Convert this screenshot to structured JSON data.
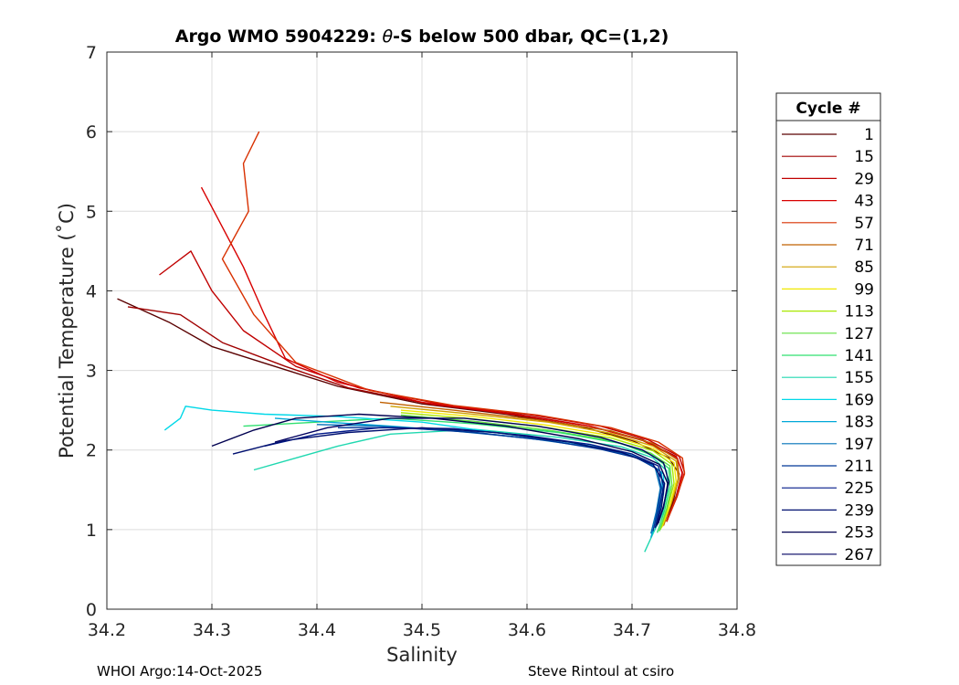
{
  "chart_data": {
    "type": "line",
    "title": "Argo WMO 5904229: θ-S below 500 dbar,  QC=(1,2)",
    "title_prefix": "Argo WMO 5904229: ",
    "title_theta": "θ",
    "title_suffix": "-S below 500 dbar,  QC=(1,2)",
    "xlabel": "Salinity",
    "ylabel": "Potential Temperature (˚C)",
    "xlim": [
      34.2,
      34.8
    ],
    "ylim": [
      0,
      7
    ],
    "xticks": [
      "34.2",
      "34.3",
      "34.4",
      "34.5",
      "34.6",
      "34.7",
      "34.8"
    ],
    "yticks": [
      "0",
      "1",
      "2",
      "3",
      "4",
      "5",
      "6",
      "7"
    ],
    "grid": true,
    "legend": {
      "title": "Cycle #",
      "position": "right",
      "entries": [
        {
          "label": "1",
          "color": "#5a0000"
        },
        {
          "label": "15",
          "color": "#a00000"
        },
        {
          "label": "29",
          "color": "#c00000"
        },
        {
          "label": "43",
          "color": "#d80000"
        },
        {
          "label": "57",
          "color": "#d83000"
        },
        {
          "label": "71",
          "color": "#c06000"
        },
        {
          "label": "85",
          "color": "#d0a000"
        },
        {
          "label": "99",
          "color": "#f0e800"
        },
        {
          "label": "113",
          "color": "#a8e800"
        },
        {
          "label": "127",
          "color": "#60e040"
        },
        {
          "label": "141",
          "color": "#30e070"
        },
        {
          "label": "155",
          "color": "#20d8b0"
        },
        {
          "label": "169",
          "color": "#00d8e8"
        },
        {
          "label": "183",
          "color": "#00a8d8"
        },
        {
          "label": "197",
          "color": "#0070b8"
        },
        {
          "label": "211",
          "color": "#003898"
        },
        {
          "label": "225",
          "color": "#001888"
        },
        {
          "label": "239",
          "color": "#001070"
        },
        {
          "label": "253",
          "color": "#000050"
        },
        {
          "label": "267",
          "color": "#000060"
        }
      ]
    },
    "series": [
      {
        "name": "1",
        "color": "#5a0000",
        "x": [
          34.21,
          34.26,
          34.3,
          34.36,
          34.42,
          34.5,
          34.58,
          34.65,
          34.7,
          34.735,
          34.745,
          34.74,
          34.733
        ],
        "y": [
          3.9,
          3.6,
          3.3,
          3.05,
          2.8,
          2.58,
          2.45,
          2.3,
          2.12,
          1.9,
          1.7,
          1.4,
          1.1
        ]
      },
      {
        "name": "15",
        "color": "#a00000",
        "x": [
          34.22,
          34.27,
          34.31,
          34.37,
          34.43,
          34.51,
          34.59,
          34.66,
          34.71,
          34.742,
          34.748,
          34.742,
          34.733
        ],
        "y": [
          3.8,
          3.7,
          3.35,
          3.05,
          2.78,
          2.57,
          2.45,
          2.3,
          2.13,
          1.92,
          1.72,
          1.42,
          1.1
        ]
      },
      {
        "name": "29",
        "color": "#c00000",
        "x": [
          34.25,
          34.28,
          34.3,
          34.33,
          34.38,
          34.44,
          34.52,
          34.6,
          34.67,
          34.715,
          34.745,
          34.75,
          34.743,
          34.733
        ],
        "y": [
          4.2,
          4.5,
          4.0,
          3.5,
          3.05,
          2.78,
          2.57,
          2.45,
          2.3,
          2.13,
          1.92,
          1.72,
          1.42,
          1.1
        ]
      },
      {
        "name": "43",
        "color": "#d80000",
        "x": [
          34.29,
          34.31,
          34.33,
          34.35,
          34.37,
          34.42,
          34.5,
          34.58,
          34.66,
          34.71,
          34.743,
          34.748,
          34.742,
          34.733
        ],
        "y": [
          5.3,
          4.8,
          4.3,
          3.7,
          3.15,
          2.85,
          2.6,
          2.46,
          2.3,
          2.12,
          1.9,
          1.7,
          1.4,
          1.1
        ]
      },
      {
        "name": "57",
        "color": "#d83000",
        "x": [
          34.345,
          34.33,
          34.335,
          34.31,
          34.34,
          34.38,
          34.45,
          34.53,
          34.61,
          34.68,
          34.725,
          34.748,
          34.75,
          34.742,
          34.733
        ],
        "y": [
          6.0,
          5.6,
          5.0,
          4.4,
          3.7,
          3.1,
          2.75,
          2.56,
          2.44,
          2.28,
          2.1,
          1.9,
          1.7,
          1.4,
          1.1
        ]
      },
      {
        "name": "71",
        "color": "#c06000",
        "x": [
          34.46,
          34.53,
          34.61,
          34.68,
          34.72,
          34.743,
          34.745,
          34.738,
          34.73
        ],
        "y": [
          2.6,
          2.5,
          2.38,
          2.24,
          2.08,
          1.88,
          1.65,
          1.35,
          1.05
        ]
      },
      {
        "name": "85",
        "color": "#d0a000",
        "x": [
          34.47,
          34.54,
          34.62,
          34.68,
          34.72,
          34.742,
          34.744,
          34.737,
          34.729
        ],
        "y": [
          2.55,
          2.46,
          2.35,
          2.21,
          2.05,
          1.86,
          1.63,
          1.33,
          1.04
        ]
      },
      {
        "name": "99",
        "color": "#f0e800",
        "x": [
          34.48,
          34.55,
          34.62,
          34.68,
          34.72,
          34.74,
          34.742,
          34.736,
          34.728
        ],
        "y": [
          2.5,
          2.42,
          2.31,
          2.18,
          2.02,
          1.84,
          1.6,
          1.3,
          1.02
        ]
      },
      {
        "name": "113",
        "color": "#a8e800",
        "x": [
          34.48,
          34.55,
          34.62,
          34.68,
          34.72,
          34.738,
          34.74,
          34.734,
          34.727
        ],
        "y": [
          2.47,
          2.39,
          2.28,
          2.15,
          1.99,
          1.82,
          1.58,
          1.28,
          1.0
        ]
      },
      {
        "name": "127",
        "color": "#60e040",
        "x": [
          34.48,
          34.55,
          34.62,
          34.68,
          34.718,
          34.736,
          34.738,
          34.733,
          34.726
        ],
        "y": [
          2.44,
          2.36,
          2.25,
          2.12,
          1.96,
          1.8,
          1.56,
          1.26,
          0.98
        ]
      },
      {
        "name": "141",
        "color": "#30e070",
        "x": [
          34.33,
          34.4,
          34.47,
          34.55,
          34.63,
          34.69,
          34.72,
          34.735,
          34.736,
          34.731,
          34.724
        ],
        "y": [
          2.3,
          2.35,
          2.4,
          2.33,
          2.22,
          2.08,
          1.93,
          1.77,
          1.54,
          1.24,
          0.96
        ]
      },
      {
        "name": "155",
        "color": "#20d8b0",
        "x": [
          34.34,
          34.38,
          34.42,
          34.47,
          34.55,
          34.63,
          34.69,
          34.72,
          34.733,
          34.734,
          34.729,
          34.72,
          34.712
        ],
        "y": [
          1.75,
          1.9,
          2.05,
          2.2,
          2.26,
          2.16,
          2.04,
          1.9,
          1.74,
          1.5,
          1.2,
          0.95,
          0.72
        ]
      },
      {
        "name": "169",
        "color": "#00d8e8",
        "x": [
          34.255,
          34.27,
          34.275,
          34.3,
          34.35,
          34.42,
          34.5,
          34.57,
          34.64,
          34.69,
          34.715,
          34.73,
          34.73,
          34.725
        ],
        "y": [
          2.25,
          2.4,
          2.55,
          2.5,
          2.45,
          2.42,
          2.35,
          2.22,
          2.1,
          1.98,
          1.85,
          1.7,
          1.45,
          1.15
        ]
      },
      {
        "name": "183",
        "color": "#00a8d8",
        "x": [
          34.36,
          34.41,
          34.47,
          34.55,
          34.62,
          34.68,
          34.712,
          34.728,
          34.729,
          34.724,
          34.718
        ],
        "y": [
          2.4,
          2.35,
          2.3,
          2.22,
          2.12,
          2.0,
          1.88,
          1.72,
          1.48,
          1.18,
          0.9
        ]
      },
      {
        "name": "197",
        "color": "#0070b8",
        "x": [
          34.4,
          34.46,
          34.53,
          34.6,
          34.66,
          34.7,
          34.722,
          34.727,
          34.723,
          34.718
        ],
        "y": [
          2.32,
          2.3,
          2.24,
          2.15,
          2.04,
          1.93,
          1.78,
          1.52,
          1.22,
          0.95
        ]
      },
      {
        "name": "211",
        "color": "#003898",
        "x": [
          34.42,
          34.48,
          34.55,
          34.62,
          34.67,
          34.705,
          34.724,
          34.728,
          34.724,
          34.72
        ],
        "y": [
          2.28,
          2.28,
          2.22,
          2.12,
          2.01,
          1.9,
          1.76,
          1.52,
          1.22,
          0.98
        ]
      },
      {
        "name": "225",
        "color": "#001888",
        "x": [
          34.35,
          34.4,
          34.46,
          34.53,
          34.6,
          34.66,
          34.7,
          34.725,
          34.73,
          34.726,
          34.722
        ],
        "y": [
          2.05,
          2.2,
          2.28,
          2.27,
          2.18,
          2.07,
          1.95,
          1.8,
          1.55,
          1.25,
          1.02
        ]
      },
      {
        "name": "239",
        "color": "#001070",
        "x": [
          34.32,
          34.37,
          34.43,
          34.5,
          34.57,
          34.64,
          34.69,
          34.72,
          34.731,
          34.728,
          34.723
        ],
        "y": [
          1.95,
          2.12,
          2.22,
          2.28,
          2.22,
          2.1,
          1.97,
          1.82,
          1.58,
          1.28,
          1.04
        ]
      },
      {
        "name": "253",
        "color": "#000050",
        "x": [
          34.3,
          34.34,
          34.38,
          34.44,
          34.51,
          34.58,
          34.65,
          34.7,
          34.726,
          34.734,
          34.73,
          34.724
        ],
        "y": [
          2.05,
          2.25,
          2.4,
          2.45,
          2.4,
          2.3,
          2.14,
          1.98,
          1.82,
          1.58,
          1.28,
          1.06
        ]
      },
      {
        "name": "267",
        "color": "#000060",
        "x": [
          34.36,
          34.41,
          34.47,
          34.54,
          34.61,
          34.67,
          34.71,
          34.73,
          34.735,
          34.73,
          34.725
        ],
        "y": [
          2.1,
          2.28,
          2.4,
          2.4,
          2.3,
          2.16,
          2.0,
          1.84,
          1.6,
          1.3,
          1.08
        ]
      }
    ],
    "footer_left": "WHOI Argo:14-Oct-2025",
    "footer_right": "Steve Rintoul at csiro"
  }
}
